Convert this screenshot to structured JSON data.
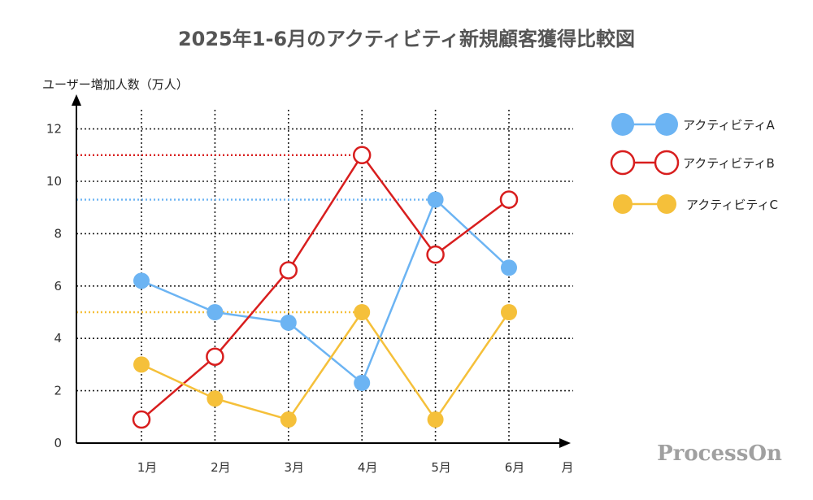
{
  "chart_data": {
    "type": "line",
    "title": "2025年1-6月のアクティビティ新規顧客獲得比較図",
    "ylabel": "ユーザー増加人数（万人）",
    "xlabel": "月",
    "categories": [
      "1月",
      "2月",
      "3月",
      "4月",
      "5月",
      "6月"
    ],
    "y_ticks": [
      0,
      2,
      4,
      6,
      8,
      10,
      12
    ],
    "ylim": [
      0,
      12.6
    ],
    "grid": true,
    "legend_position": "right",
    "series": [
      {
        "name": "アクティビティA",
        "color": "#6cb4f3",
        "marker": "filled-circle",
        "values": [
          6.2,
          5.0,
          4.6,
          2.3,
          9.3,
          6.7
        ],
        "reference_line": 9.3
      },
      {
        "name": "アクティビティB",
        "color": "#d81e1e",
        "marker": "hollow-circle",
        "values": [
          0.9,
          3.3,
          6.6,
          11.0,
          7.2,
          9.3
        ],
        "reference_line": 11.0
      },
      {
        "name": "アクティビティC",
        "color": "#f5c03a",
        "marker": "filled-circle",
        "values": [
          3.0,
          1.7,
          0.9,
          5.0,
          0.9,
          5.0
        ],
        "reference_line": 5.0
      }
    ]
  },
  "watermark": "ProcessOn"
}
